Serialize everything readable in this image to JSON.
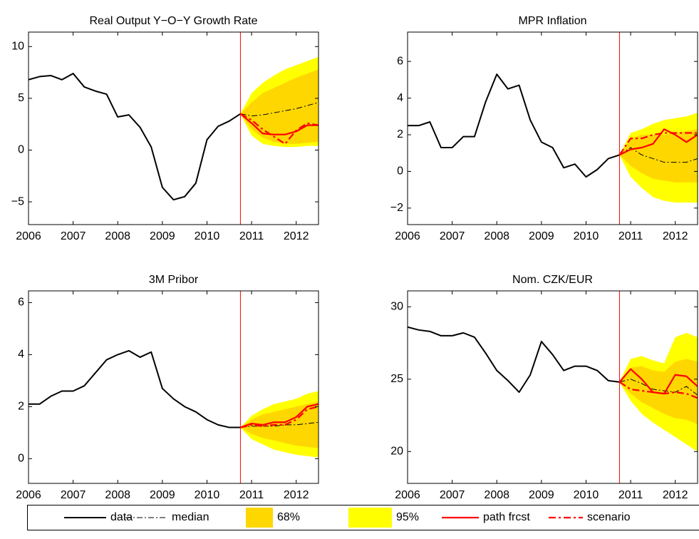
{
  "chart_data": [
    {
      "type": "line",
      "title": "Real Output Y−O−Y Growth Rate",
      "xlim": [
        2006,
        2012.5
      ],
      "ylim": [
        -7.2,
        11.4
      ],
      "xticks": [
        2006,
        2007,
        2008,
        2009,
        2010,
        2011,
        2012
      ],
      "yticks": [
        {
          "value": -5,
          "label": "−5"
        },
        0,
        5,
        10
      ],
      "vline": 2010.75,
      "vline_color": "#ff0000",
      "series": [
        {
          "name": "data",
          "color": "#000000",
          "x": [
            2006,
            2006.25,
            2006.5,
            2006.75,
            2007,
            2007.25,
            2007.5,
            2007.75,
            2008,
            2008.25,
            2008.5,
            2008.75,
            2009,
            2009.25,
            2009.5,
            2009.75,
            2010,
            2010.25,
            2010.5,
            2010.75
          ],
          "values": [
            6.8,
            7.1,
            7.2,
            6.8,
            7.4,
            6.1,
            5.7,
            5.4,
            3.2,
            3.4,
            2.2,
            0.3,
            -3.6,
            -4.8,
            -4.5,
            -3.2,
            1.0,
            2.3,
            2.8,
            3.5
          ]
        },
        {
          "name": "median",
          "color": "#000000",
          "x": [
            2010.75,
            2011,
            2011.25,
            2011.5,
            2011.75,
            2012,
            2012.25,
            2012.5
          ],
          "values": [
            3.5,
            3.3,
            3.4,
            3.6,
            3.8,
            4.0,
            4.3,
            4.6
          ]
        },
        {
          "name": "68%",
          "color": "#ffd700",
          "x": [
            2010.75,
            2011,
            2011.25,
            2011.5,
            2011.75,
            2012,
            2012.25,
            2012.5
          ],
          "values": [
            3.5,
            4.6,
            5.5,
            6.0,
            6.5,
            7.0,
            7.4,
            7.8
          ],
          "lower": [
            3.5,
            2.0,
            1.2,
            0.8,
            0.6,
            0.6,
            0.7,
            0.8
          ]
        },
        {
          "name": "95%",
          "color": "#ffff00",
          "x": [
            2010.75,
            2011,
            2011.25,
            2011.5,
            2011.75,
            2012,
            2012.25,
            2012.5
          ],
          "values": [
            3.5,
            5.5,
            6.5,
            7.2,
            7.8,
            8.2,
            8.6,
            9.0
          ],
          "lower": [
            3.5,
            1.4,
            0.6,
            0.4,
            0.3,
            0.3,
            0.4,
            0.4
          ]
        },
        {
          "name": "path frcst",
          "color": "#ff0000",
          "x": [
            2010.75,
            2011,
            2011.25,
            2011.5,
            2011.75,
            2012,
            2012.25,
            2012.5
          ],
          "values": [
            3.5,
            2.6,
            1.6,
            1.5,
            1.5,
            1.8,
            2.4,
            2.4
          ]
        },
        {
          "name": "scenario",
          "color": "#ff0000",
          "x": [
            2010.75,
            2011,
            2011.25,
            2011.5,
            2011.75,
            2012,
            2012.25,
            2012.5
          ],
          "values": [
            3.5,
            2.9,
            2.0,
            1.3,
            0.6,
            1.9,
            2.6,
            2.4
          ]
        }
      ]
    },
    {
      "type": "line",
      "title": "MPR Inflation",
      "xlim": [
        2006,
        2012.5
      ],
      "ylim": [
        -2.9,
        7.6
      ],
      "xticks": [
        2006,
        2007,
        2008,
        2009,
        2010,
        2011,
        2012
      ],
      "yticks": [
        {
          "value": -2,
          "label": "−2"
        },
        0,
        2,
        4,
        6
      ],
      "vline": 2010.75,
      "vline_color": "#ff0000",
      "series": [
        {
          "name": "data",
          "color": "#000000",
          "x": [
            2006,
            2006.25,
            2006.5,
            2006.75,
            2007,
            2007.25,
            2007.5,
            2007.75,
            2008,
            2008.25,
            2008.5,
            2008.75,
            2009,
            2009.25,
            2009.5,
            2009.75,
            2010,
            2010.25,
            2010.5,
            2010.75
          ],
          "values": [
            2.5,
            2.5,
            2.7,
            1.3,
            1.3,
            1.9,
            1.9,
            3.8,
            5.3,
            4.5,
            4.7,
            2.8,
            1.6,
            1.3,
            0.2,
            0.4,
            -0.3,
            0.1,
            0.7,
            0.9
          ]
        },
        {
          "name": "median",
          "color": "#000000",
          "x": [
            2010.75,
            2011,
            2011.25,
            2011.5,
            2011.75,
            2012,
            2012.25,
            2012.5
          ],
          "values": [
            0.9,
            1.3,
            0.9,
            0.7,
            0.5,
            0.5,
            0.5,
            0.7
          ]
        },
        {
          "name": "68%",
          "color": "#ffd700",
          "x": [
            2010.75,
            2011,
            2011.25,
            2011.5,
            2011.75,
            2012,
            2012.25,
            2012.5
          ],
          "values": [
            0.9,
            1.8,
            2.0,
            2.0,
            2.0,
            2.1,
            2.2,
            2.3
          ],
          "lower": [
            0.9,
            0.3,
            -0.1,
            -0.4,
            -0.5,
            -0.6,
            -0.6,
            -0.6
          ]
        },
        {
          "name": "95%",
          "color": "#ffff00",
          "x": [
            2010.75,
            2011,
            2011.25,
            2011.5,
            2011.75,
            2012,
            2012.25,
            2012.5
          ],
          "values": [
            0.9,
            2.1,
            2.3,
            2.6,
            2.8,
            2.9,
            3.0,
            3.2
          ],
          "lower": [
            0.9,
            -0.3,
            -0.9,
            -1.4,
            -1.6,
            -1.7,
            -1.7,
            -1.7
          ]
        },
        {
          "name": "path frcst",
          "color": "#ff0000",
          "x": [
            2010.75,
            2011,
            2011.25,
            2011.5,
            2011.75,
            2012,
            2012.25,
            2012.5
          ],
          "values": [
            0.9,
            1.2,
            1.3,
            1.5,
            2.3,
            2.0,
            1.6,
            2.0
          ]
        },
        {
          "name": "scenario",
          "color": "#ff0000",
          "x": [
            2010.75,
            2011,
            2011.25,
            2011.5,
            2011.75,
            2012,
            2012.25,
            2012.5
          ],
          "values": [
            0.9,
            1.8,
            1.8,
            2.0,
            2.1,
            2.1,
            2.1,
            2.1
          ]
        }
      ]
    },
    {
      "type": "line",
      "title": "3M Pribor",
      "xlim": [
        2006,
        2012.5
      ],
      "ylim": [
        -0.95,
        6.45
      ],
      "xticks": [
        2006,
        2007,
        2008,
        2009,
        2010,
        2011,
        2012
      ],
      "yticks": [
        0,
        2,
        4,
        6
      ],
      "vline": 2010.75,
      "vline_color": "#ff0000",
      "series": [
        {
          "name": "data",
          "color": "#000000",
          "x": [
            2006,
            2006.25,
            2006.5,
            2006.75,
            2007,
            2007.25,
            2007.5,
            2007.75,
            2008,
            2008.25,
            2008.5,
            2008.75,
            2009,
            2009.25,
            2009.5,
            2009.75,
            2010,
            2010.25,
            2010.5,
            2010.75
          ],
          "values": [
            2.1,
            2.1,
            2.4,
            2.6,
            2.6,
            2.8,
            3.3,
            3.8,
            4.0,
            4.15,
            3.9,
            4.1,
            2.7,
            2.3,
            2.0,
            1.8,
            1.5,
            1.3,
            1.2,
            1.2
          ]
        },
        {
          "name": "median",
          "color": "#000000",
          "x": [
            2010.75,
            2011,
            2011.25,
            2011.5,
            2011.75,
            2012,
            2012.25,
            2012.5
          ],
          "values": [
            1.2,
            1.25,
            1.25,
            1.25,
            1.3,
            1.3,
            1.35,
            1.4
          ]
        },
        {
          "name": "68%",
          "color": "#ffd700",
          "x": [
            2010.75,
            2011,
            2011.25,
            2011.5,
            2011.75,
            2012,
            2012.25,
            2012.5
          ],
          "values": [
            1.2,
            1.5,
            1.7,
            1.8,
            1.9,
            2.0,
            2.1,
            2.2
          ],
          "lower": [
            1.2,
            0.95,
            0.8,
            0.7,
            0.6,
            0.5,
            0.45,
            0.4
          ]
        },
        {
          "name": "95%",
          "color": "#ffff00",
          "x": [
            2010.75,
            2011,
            2011.25,
            2011.5,
            2011.75,
            2012,
            2012.25,
            2012.5
          ],
          "values": [
            1.2,
            1.65,
            1.9,
            2.1,
            2.2,
            2.3,
            2.5,
            2.6
          ],
          "lower": [
            1.2,
            0.75,
            0.55,
            0.35,
            0.25,
            0.15,
            0.1,
            0.05
          ]
        },
        {
          "name": "path frcst",
          "color": "#ff0000",
          "x": [
            2010.75,
            2011,
            2011.25,
            2011.5,
            2011.75,
            2012,
            2012.25,
            2012.5
          ],
          "values": [
            1.2,
            1.35,
            1.3,
            1.4,
            1.4,
            1.6,
            2.0,
            2.1
          ]
        },
        {
          "name": "scenario",
          "color": "#ff0000",
          "x": [
            2010.75,
            2011,
            2011.25,
            2011.5,
            2011.75,
            2012,
            2012.25,
            2012.5
          ],
          "values": [
            1.2,
            1.3,
            1.25,
            1.3,
            1.3,
            1.5,
            1.9,
            2.0
          ]
        }
      ]
    },
    {
      "type": "line",
      "title": "Nom. CZK/EUR",
      "xlim": [
        2006,
        2012.5
      ],
      "ylim": [
        17.8,
        31.1
      ],
      "xticks": [
        2006,
        2007,
        2008,
        2009,
        2010,
        2011,
        2012
      ],
      "yticks": [
        20,
        25,
        30
      ],
      "vline": 2010.75,
      "vline_color": "#ff0000",
      "series": [
        {
          "name": "data",
          "color": "#000000",
          "x": [
            2006,
            2006.25,
            2006.5,
            2006.75,
            2007,
            2007.25,
            2007.5,
            2007.75,
            2008,
            2008.25,
            2008.5,
            2008.75,
            2009,
            2009.25,
            2009.5,
            2009.75,
            2010,
            2010.25,
            2010.5,
            2010.75
          ],
          "values": [
            28.6,
            28.4,
            28.3,
            28.0,
            28.0,
            28.2,
            27.9,
            26.8,
            25.6,
            24.9,
            24.1,
            25.3,
            27.6,
            26.7,
            25.6,
            25.9,
            25.9,
            25.6,
            24.9,
            24.8
          ]
        },
        {
          "name": "median",
          "color": "#000000",
          "x": [
            2010.75,
            2011,
            2011.25,
            2011.5,
            2011.75,
            2012,
            2012.25,
            2012.5
          ],
          "values": [
            24.8,
            25.0,
            24.7,
            24.3,
            24.2,
            24.1,
            24.5,
            23.9
          ]
        },
        {
          "name": "68%",
          "color": "#ffd700",
          "x": [
            2010.75,
            2011,
            2011.25,
            2011.5,
            2011.75,
            2012,
            2012.25,
            2012.5
          ],
          "values": [
            24.8,
            25.8,
            25.9,
            25.6,
            25.5,
            26.2,
            26.4,
            26.2
          ],
          "lower": [
            24.8,
            24.0,
            23.4,
            23.0,
            22.6,
            22.3,
            22.2,
            21.9
          ]
        },
        {
          "name": "95%",
          "color": "#ffff00",
          "x": [
            2010.75,
            2011,
            2011.25,
            2011.5,
            2011.75,
            2012,
            2012.25,
            2012.5
          ],
          "values": [
            24.8,
            26.4,
            26.6,
            26.3,
            26.1,
            27.9,
            28.2,
            27.9
          ],
          "lower": [
            24.8,
            23.5,
            22.6,
            22.0,
            21.5,
            21.0,
            20.5,
            20.0
          ]
        },
        {
          "name": "path frcst",
          "color": "#ff0000",
          "x": [
            2010.75,
            2011,
            2011.25,
            2011.5,
            2011.75,
            2012,
            2012.25,
            2012.5
          ],
          "values": [
            24.8,
            25.7,
            25.0,
            24.1,
            24.0,
            25.3,
            25.2,
            24.5
          ]
        },
        {
          "name": "scenario",
          "color": "#ff0000",
          "x": [
            2010.75,
            2011,
            2011.25,
            2011.5,
            2011.75,
            2012,
            2012.25,
            2012.5
          ],
          "values": [
            24.8,
            24.3,
            24.2,
            24.1,
            24.0,
            24.1,
            24.0,
            23.7
          ]
        }
      ]
    }
  ]
}
